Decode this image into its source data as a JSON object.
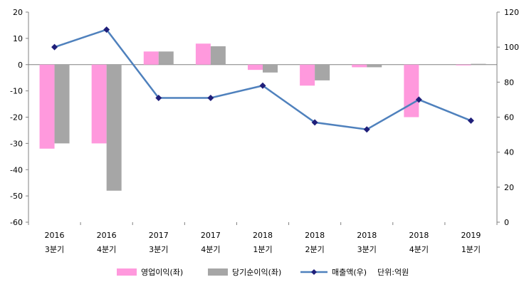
{
  "chart_data": {
    "type": "bar",
    "categories": [
      [
        "2016",
        "3분기"
      ],
      [
        "2016",
        "4분기"
      ],
      [
        "2017",
        "3분기"
      ],
      [
        "2017",
        "4분기"
      ],
      [
        "2018",
        "1분기"
      ],
      [
        "2018",
        "2분기"
      ],
      [
        "2018",
        "3분기"
      ],
      [
        "2018",
        "4분기"
      ],
      [
        "2019",
        "1분기"
      ]
    ],
    "series": [
      {
        "name": "영업이익(좌)",
        "type": "bar",
        "axis": "left",
        "color": "#ff99dd",
        "values": [
          -32,
          -30,
          5,
          8,
          -2,
          -8,
          -1,
          -20,
          -0.3
        ]
      },
      {
        "name": "당기순이익(좌)",
        "type": "bar",
        "axis": "left",
        "color": "#a6a6a6",
        "values": [
          -30,
          -48,
          5,
          7,
          -3,
          -6,
          -1,
          0,
          0.3
        ]
      },
      {
        "name": "매출액(우)",
        "type": "line",
        "axis": "right",
        "color": "#4f81bd",
        "marker_color": "#1f1f7a",
        "values": [
          100,
          110,
          71,
          71,
          78,
          57,
          53,
          70,
          58
        ]
      }
    ],
    "y_left": {
      "ticks": [
        20,
        10,
        0,
        -10,
        -20,
        -30,
        -40,
        -50,
        -60
      ],
      "ylim": [
        -60,
        20
      ]
    },
    "y_right": {
      "ticks": [
        120,
        100,
        80,
        60,
        40,
        20,
        0
      ],
      "ylim": [
        0,
        120
      ]
    },
    "unit_note": "단위:억원",
    "legend_position": "bottom",
    "grid": false
  }
}
